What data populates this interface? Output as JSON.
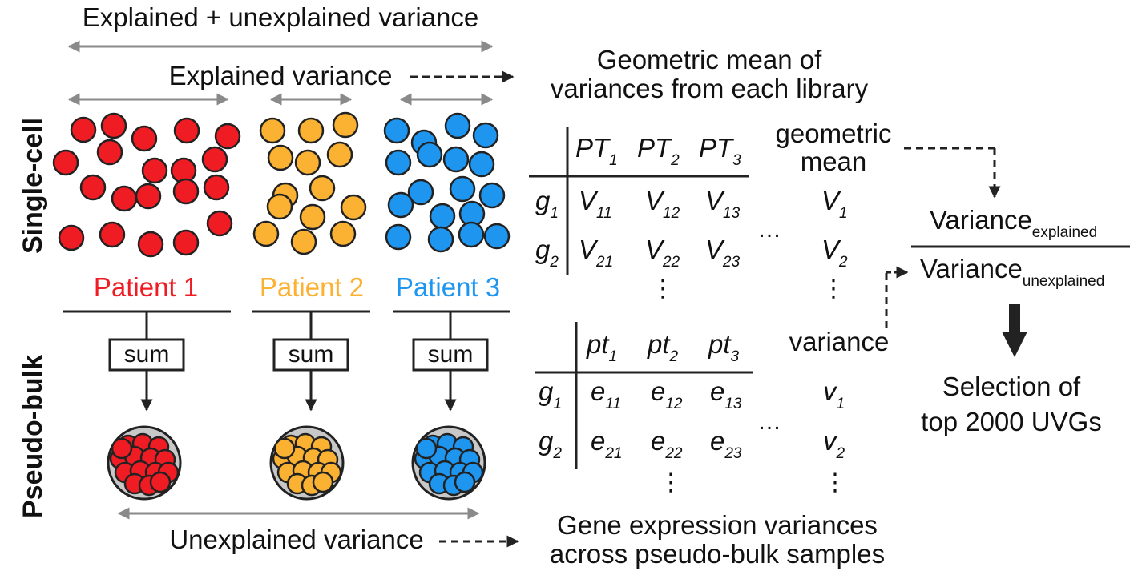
{
  "colors": {
    "patient1": "#ef1c24",
    "patient2": "#fbb132",
    "patient3": "#1e96f0",
    "arrow_gray": "#8a8a8a",
    "dish_fill": "#c8c8c8"
  },
  "labels": {
    "total_variance": "Explained + unexplained variance",
    "explained_variance": "Explained variance",
    "unexplained_variance": "Unexplained variance",
    "geo_mean_desc_line1": "Geometric mean of",
    "geo_mean_desc_line2": "variances from each library",
    "gene_var_desc_line1": "Gene expression variances",
    "gene_var_desc_line2": "across pseudo-bulk samples",
    "single_cell": "Single-cell",
    "pseudo_bulk": "Pseudo-bulk",
    "sum": "sum",
    "geometric_mean_line1": "geometric",
    "geometric_mean_line2": "mean",
    "variance": "variance",
    "ratio_numerator": "Variance",
    "ratio_numerator_sub": "explained",
    "ratio_denominator": "Variance",
    "ratio_denominator_sub": "unexplained",
    "selection_line1": "Selection of",
    "selection_line2": "top 2000 UVGs",
    "hdots": "…",
    "vdots": "⋮"
  },
  "patients": [
    {
      "label": "Patient 1"
    },
    {
      "label": "Patient 2"
    },
    {
      "label": "Patient 3"
    }
  ],
  "sc_table": {
    "col_base": "PT",
    "cols": [
      "1",
      "2",
      "3"
    ],
    "row_base": "g",
    "rows": [
      "1",
      "2"
    ],
    "cell_base": "V",
    "cells": [
      [
        "11",
        "12",
        "13"
      ],
      [
        "21",
        "22",
        "23"
      ]
    ],
    "result_base": "V",
    "results": [
      "1",
      "2"
    ]
  },
  "pb_table": {
    "col_base": "pt",
    "cols": [
      "1",
      "2",
      "3"
    ],
    "row_base": "g",
    "rows": [
      "1",
      "2"
    ],
    "cell_base": "e",
    "cells": [
      [
        "11",
        "12",
        "13"
      ],
      [
        "21",
        "22",
        "23"
      ]
    ],
    "result_base": "v",
    "results": [
      "1",
      "2"
    ]
  }
}
